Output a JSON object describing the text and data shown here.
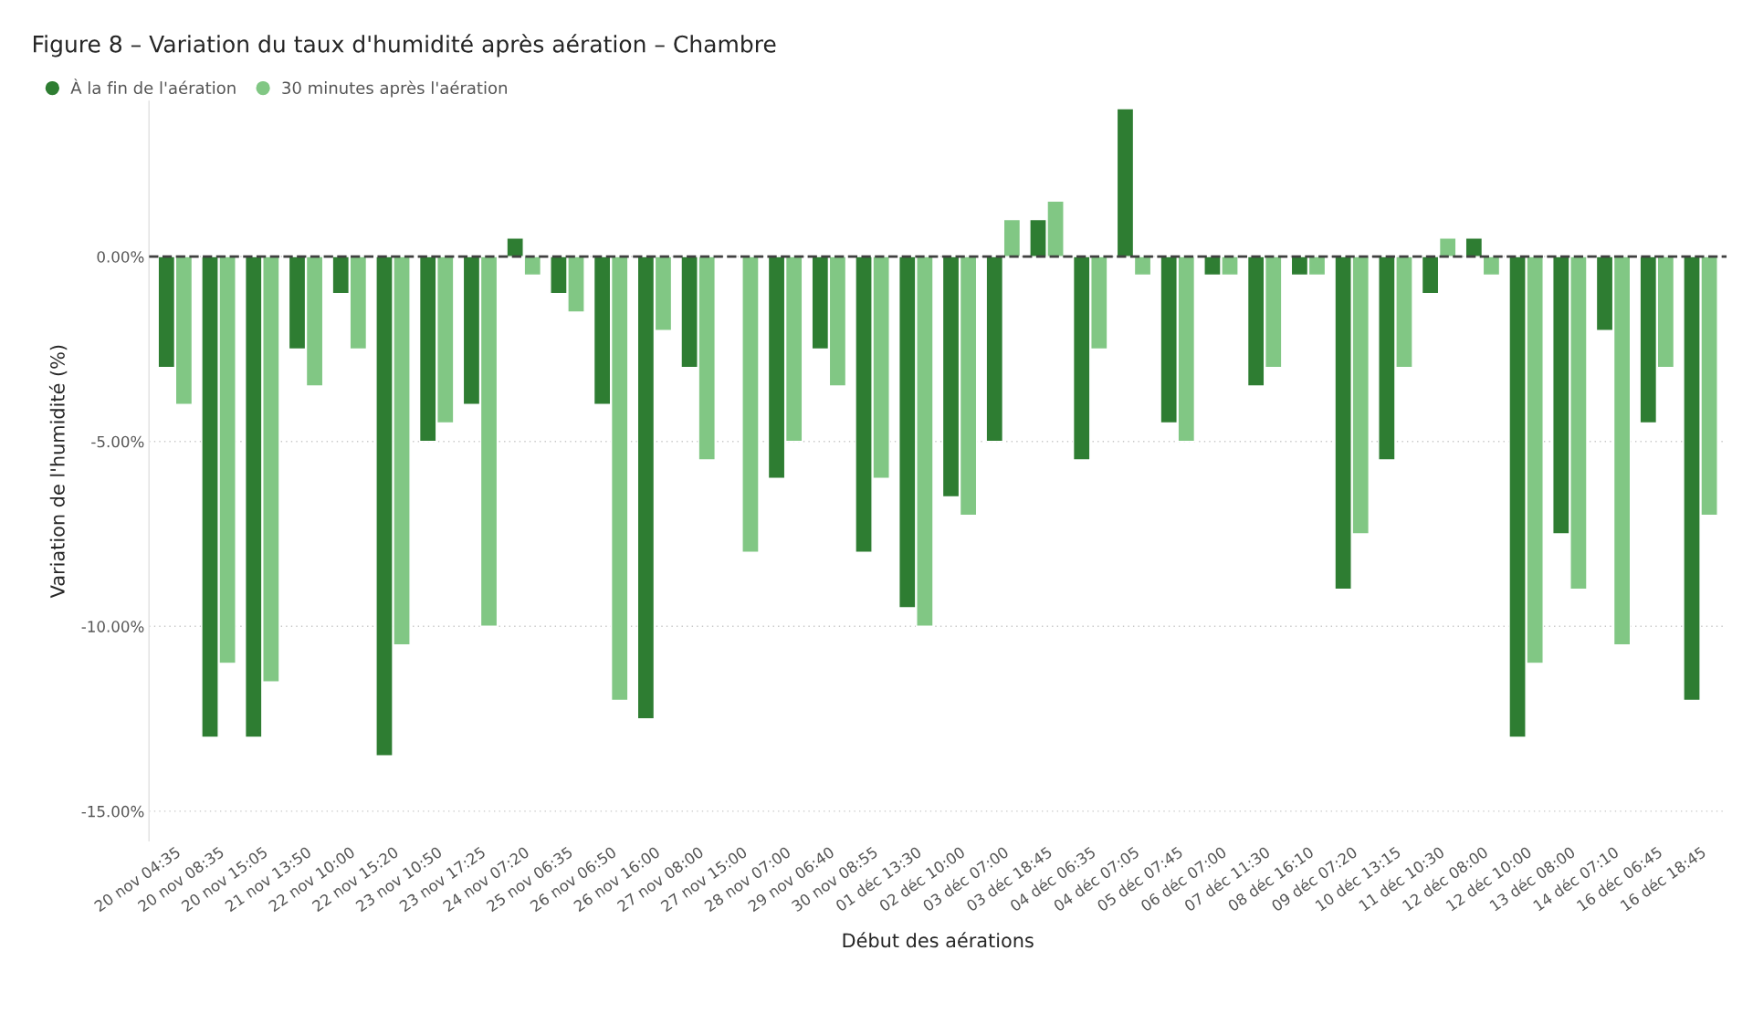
{
  "chart_data": {
    "type": "bar",
    "title": "Figure 8 – Variation du taux d'humidité après aération – Chambre",
    "xlabel": "Début des aérations",
    "ylabel": "Variation de l'humidité (%)",
    "categories": [
      "20 nov 04:35",
      "20 nov 08:35",
      "20 nov 15:05",
      "21 nov 13:50",
      "22 nov 10:00",
      "22 nov 15:20",
      "23 nov 10:50",
      "23 nov 17:25",
      "24 nov 07:20",
      "25 nov 06:35",
      "26 nov 06:50",
      "26 nov 16:00",
      "27 nov 08:00",
      "27 nov 15:00",
      "28 nov 07:00",
      "29 nov 06:40",
      "30 nov 08:55",
      "01 déc 13:30",
      "02 déc 10:00",
      "03 déc 07:00",
      "03 déc 18:45",
      "04 déc 06:35",
      "04 déc 07:05",
      "05 déc 07:45",
      "06 déc 07:00",
      "07 déc 11:30",
      "08 déc 16:10",
      "09 déc 07:20",
      "10 déc 13:15",
      "11 déc 10:30",
      "12 déc 08:00",
      "12 déc 10:00",
      "13 déc 08:00",
      "14 déc 07:10",
      "16 déc 06:45",
      "16 déc 18:45"
    ],
    "series": [
      {
        "name": "À la fin de l'aération",
        "color": "#2e7d32",
        "values": [
          -3.0,
          -13.0,
          -13.0,
          -2.5,
          -1.0,
          -13.5,
          -5.0,
          -4.0,
          0.5,
          -1.0,
          -4.0,
          -12.5,
          -3.0,
          null,
          -6.0,
          -2.5,
          -8.0,
          -9.5,
          -6.5,
          -5.0,
          1.0,
          -5.5,
          4.0,
          -4.5,
          -0.5,
          -3.5,
          -0.5,
          -9.0,
          -5.5,
          -1.0,
          0.5,
          -13.0,
          -7.5,
          -2.0,
          -4.5,
          -12.0
        ]
      },
      {
        "name": "30 minutes après l'aération",
        "color": "#81c784",
        "values": [
          -4.0,
          -11.0,
          -11.5,
          -3.5,
          -2.5,
          -10.5,
          -4.5,
          -10.0,
          -0.5,
          -1.5,
          -12.0,
          -2.0,
          -5.5,
          -8.0,
          -5.0,
          -3.5,
          -6.0,
          -10.0,
          -7.0,
          1.0,
          1.5,
          -2.5,
          -0.5,
          -5.0,
          -0.5,
          -3.0,
          -0.5,
          -7.5,
          -3.0,
          0.5,
          -0.5,
          -11.0,
          -9.0,
          -10.5,
          -3.0,
          -7.0
        ]
      }
    ],
    "ylim": [
      -15.8,
      4.2
    ],
    "yticks": [
      {
        "value": 0,
        "label": "0.00%"
      },
      {
        "value": -5,
        "label": "-5.00%"
      },
      {
        "value": -10,
        "label": "-10.00%"
      },
      {
        "value": -15,
        "label": "-15.00%"
      }
    ],
    "ref_lines": [
      {
        "axis": "y",
        "value": 0,
        "color": "#404040",
        "line_style": "dashed"
      }
    ],
    "grid": "y",
    "legend": "top left"
  }
}
